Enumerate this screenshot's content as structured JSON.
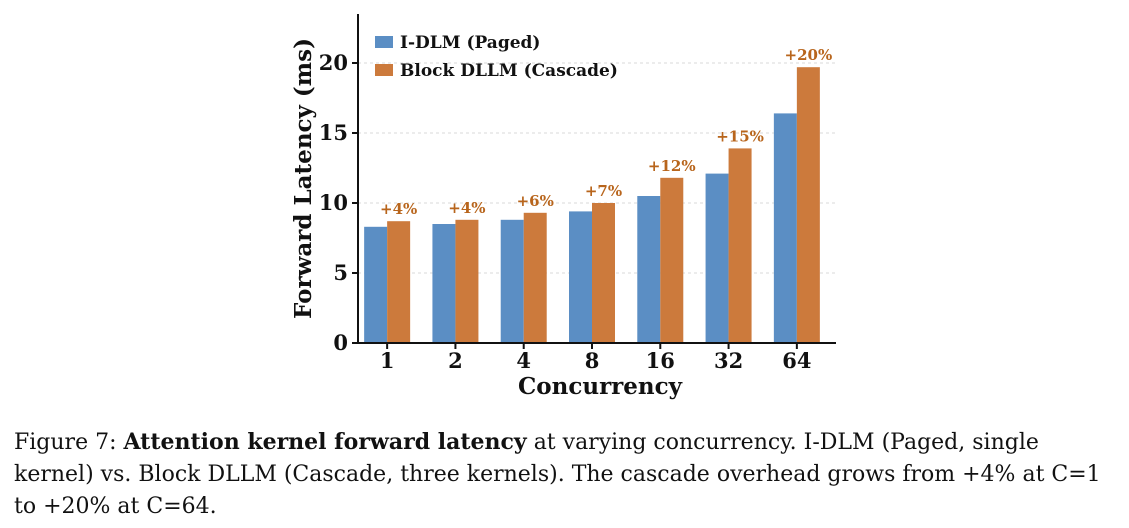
{
  "colors": {
    "series1": "#5b8ec4",
    "series2": "#cc7a3c",
    "axis": "#111111",
    "grid": "#d9d9d9",
    "annotation": "#b8651c"
  },
  "chart_data": {
    "type": "bar",
    "xlabel": "Concurrency",
    "ylabel": "Forward Latency (ms)",
    "ylim": [
      0,
      23.5
    ],
    "yticks": [
      0,
      5,
      10,
      15,
      20
    ],
    "categories": [
      "1",
      "2",
      "4",
      "8",
      "16",
      "32",
      "64"
    ],
    "series": [
      {
        "name": "I-DLM (Paged)",
        "values": [
          8.3,
          8.5,
          8.8,
          9.4,
          10.5,
          12.1,
          16.4
        ]
      },
      {
        "name": "Block DLLM (Cascade)",
        "values": [
          8.7,
          8.8,
          9.3,
          10.0,
          11.8,
          13.9,
          19.7
        ]
      }
    ],
    "annotations": [
      "+4%",
      "+4%",
      "+6%",
      "+7%",
      "+12%",
      "+15%",
      "+20%"
    ],
    "legend_position": "top-left",
    "grid": "horizontal dashed"
  },
  "caption": {
    "label": "Figure 7:",
    "title": "Attention kernel forward latency",
    "text": "at varying concurrency. I-DLM (Paged, single kernel) vs. Block DLLM (Cascade, three kernels). The cascade overhead grows from +4% at C=1 to +20% at C=64."
  }
}
